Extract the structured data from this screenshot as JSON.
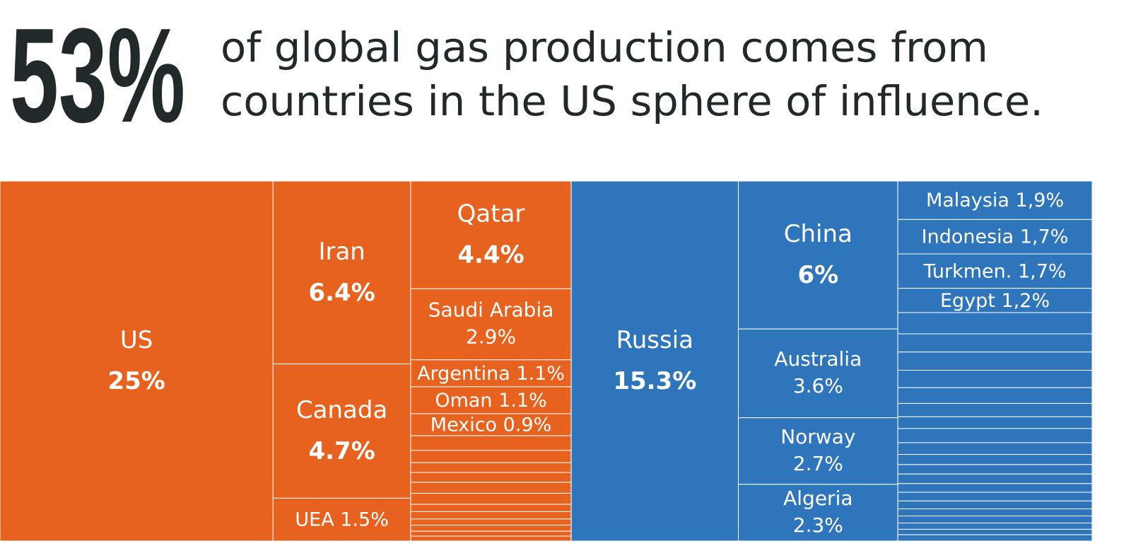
{
  "chart_data": {
    "type": "treemap",
    "headline": "53%",
    "title_lines": [
      "of global gas production comes from",
      "countries in the US sphere of influence."
    ],
    "groups": [
      {
        "color": "#e8621f",
        "columns": [
          {
            "categories": [
              "US"
            ],
            "values": [
              25
            ],
            "value_labels": [
              "25%"
            ]
          },
          {
            "categories": [
              "Iran",
              "Canada",
              "UEA"
            ],
            "values": [
              6.4,
              4.7,
              1.5
            ],
            "value_labels": [
              "6.4%",
              "4.7%",
              "1.5%"
            ]
          },
          {
            "categories": [
              "Qatar",
              "Saudi Arabia",
              "Argentina",
              "Oman",
              "Mexico",
              null,
              null,
              null,
              null,
              null,
              null,
              null,
              null,
              null,
              null,
              null,
              null
            ],
            "values": [
              4.4,
              2.9,
              1.1,
              1.1,
              0.9,
              0.6,
              0.5,
              0.4,
              0.4,
              0.45,
              0.45,
              0.3,
              0.3,
              0.25,
              0.25,
              0.2,
              0.2
            ],
            "value_labels": [
              "4.4%",
              "2.9%",
              "1.1%",
              "1.1%",
              "0.9%",
              null,
              null,
              null,
              null,
              null,
              null,
              null,
              null,
              null,
              null,
              null,
              null
            ]
          }
        ]
      },
      {
        "color": "#2e75bb",
        "columns": [
          {
            "categories": [
              "Russia"
            ],
            "values": [
              15.3
            ],
            "value_labels": [
              "15.3%"
            ]
          },
          {
            "categories": [
              "China",
              "Australia",
              "Norway",
              "Algeria"
            ],
            "values": [
              6,
              3.6,
              2.7,
              2.3
            ],
            "value_labels": [
              "6%",
              "3.6%",
              "2.7%",
              "2.3%"
            ]
          },
          {
            "categories": [
              "Malaysia",
              "Indonesia",
              "Turkmen.",
              "Egypt",
              null,
              null,
              null,
              null,
              null,
              null,
              null,
              null,
              null,
              null,
              null,
              null,
              null,
              null,
              null,
              null,
              null,
              null,
              null,
              null
            ],
            "values": [
              1.9,
              1.7,
              1.7,
              1.2,
              1.05,
              0.9,
              0.9,
              0.86,
              0.78,
              0.66,
              0.58,
              0.7,
              0.58,
              0.5,
              0.47,
              0.47,
              0.43,
              0.43,
              0.39,
              0.35,
              0.35,
              0.31,
              0.27,
              0.31
            ],
            "value_labels": [
              "1,9%",
              "1,7%",
              "1,7%",
              "1,2%",
              null,
              null,
              null,
              null,
              null,
              null,
              null,
              null,
              null,
              null,
              null,
              null,
              null,
              null,
              null,
              null,
              null,
              null,
              null,
              null
            ]
          }
        ]
      }
    ]
  }
}
